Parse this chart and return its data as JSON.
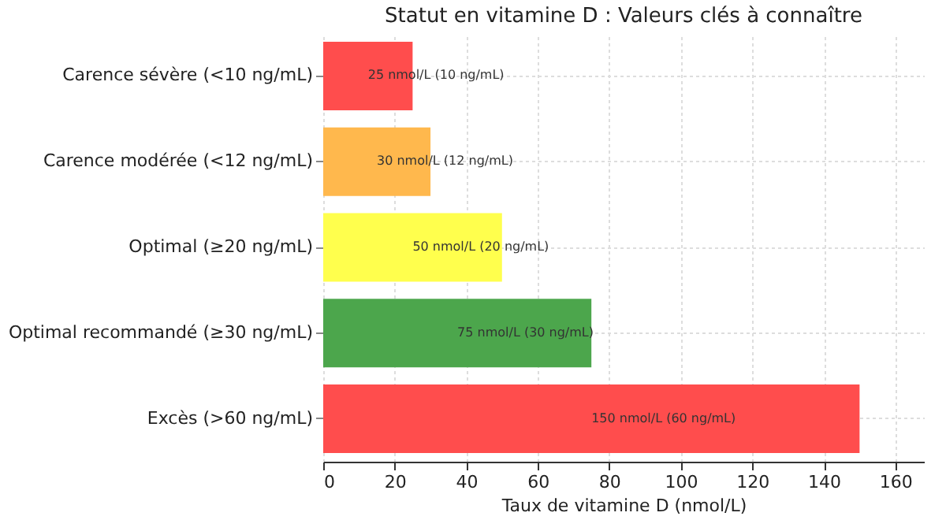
{
  "chart_data": {
    "type": "bar",
    "orientation": "horizontal",
    "title": "Statut en vitamine D : Valeurs clés à connaître",
    "xlabel": "Taux de vitamine D (nmol/L)",
    "categories": [
      "Carence sévère (<10 ng/mL)",
      "Carence modérée (<12 ng/mL)",
      "Optimal (≥20 ng/mL)",
      "Optimal recommandé (≥30 ng/mL)",
      "Excès (>60 ng/mL)"
    ],
    "values": [
      25,
      30,
      50,
      75,
      150
    ],
    "colors": [
      "#ff4d4d",
      "#ffb84d",
      "#ffff4d",
      "#4ca64c",
      "#ff4d4d"
    ],
    "value_labels": [
      "25 nmol/L (10 ng/mL)",
      "30 nmol/L (12 ng/mL)",
      "50 nmol/L (20 ng/mL)",
      "75 nmol/L (30 ng/mL)",
      "150 nmol/L (60 ng/mL)"
    ],
    "xlim": [
      0,
      168
    ],
    "xticks": [
      0,
      20,
      40,
      60,
      80,
      100,
      120,
      140,
      160
    ],
    "grid": true
  }
}
